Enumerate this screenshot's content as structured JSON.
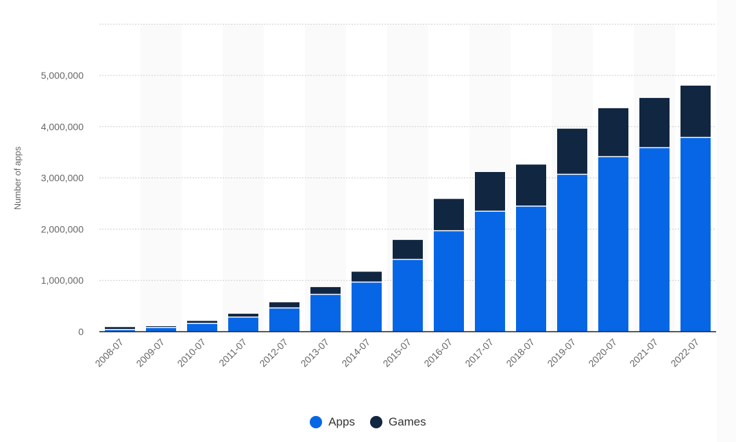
{
  "chart_data": {
    "type": "bar",
    "stacked": true,
    "title": "",
    "xlabel": "",
    "ylabel": "Number of apps",
    "ylim": [
      0,
      6000000
    ],
    "yticks": [
      0,
      1000000,
      2000000,
      3000000,
      4000000,
      5000000,
      6000000
    ],
    "ytick_labels": [
      "0",
      "1,000,000",
      "2,000,000",
      "3,000,000",
      "4,000,000",
      "5,000,000",
      ""
    ],
    "grid": true,
    "legend_position": "bottom",
    "categories": [
      "2008-07",
      "2009-07",
      "2010-07",
      "2011-07",
      "2012-07",
      "2013-07",
      "2014-07",
      "2015-07",
      "2016-07",
      "2017-07",
      "2018-07",
      "2019-07",
      "2020-07",
      "2021-07",
      "2022-07"
    ],
    "series": [
      {
        "name": "Apps",
        "color": "#0766e5",
        "values": [
          32000,
          72000,
          152000,
          275000,
          453000,
          718000,
          958000,
          1400000,
          1960000,
          2340000,
          2440000,
          3060000,
          3405000,
          3580000,
          3780000
        ]
      },
      {
        "name": "Games",
        "color": "#112641",
        "values": [
          58000,
          35000,
          58000,
          75000,
          120000,
          152000,
          212000,
          390000,
          630000,
          775000,
          820000,
          900000,
          955000,
          980000,
          1020000
        ]
      }
    ]
  }
}
